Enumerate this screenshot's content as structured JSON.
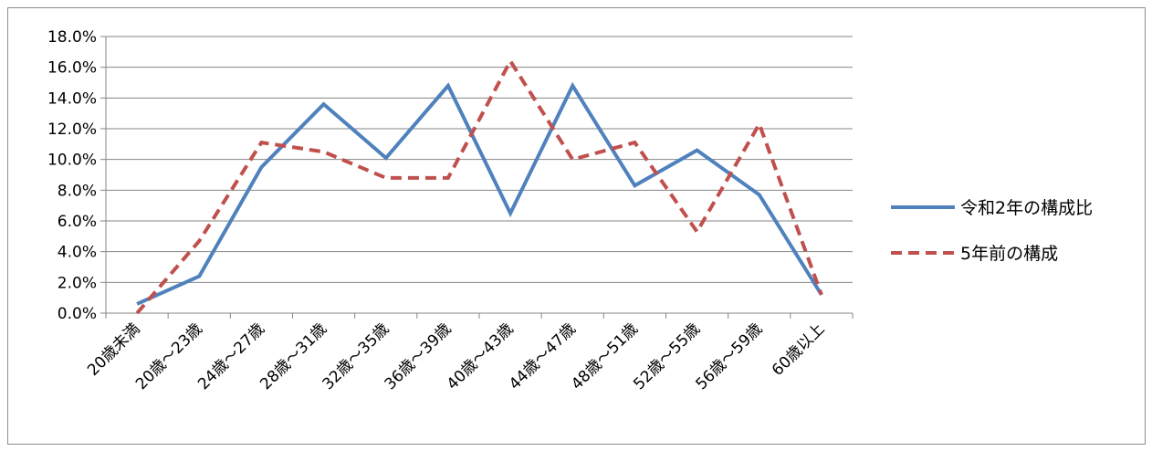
{
  "chart_data": {
    "type": "line",
    "title": "",
    "xlabel": "",
    "ylabel": "",
    "categories": [
      "20歳未満",
      "20歳～23歳",
      "24歳～27歳",
      "28歳～31歳",
      "32歳～35歳",
      "36歳～39歳",
      "40歳～43歳",
      "44歳～47歳",
      "48歳～51歳",
      "52歳～55歳",
      "56歳～59歳",
      "60歳以上"
    ],
    "y_ticks": [
      "0.0%",
      "2.0%",
      "4.0%",
      "6.0%",
      "8.0%",
      "10.0%",
      "12.0%",
      "14.0%",
      "16.0%",
      "18.0%"
    ],
    "ylim": [
      0,
      18
    ],
    "y_unit": "%",
    "grid": true,
    "legend_position": "right",
    "series": [
      {
        "name": "令和2年の構成比",
        "color": "#4f81bd",
        "dash": "solid",
        "values": [
          0.6,
          2.4,
          9.5,
          13.6,
          10.1,
          14.8,
          6.5,
          14.8,
          8.3,
          10.6,
          7.7,
          1.2
        ]
      },
      {
        "name": "5年前の構成",
        "color": "#c0504d",
        "dash": "dashed",
        "values": [
          0.0,
          4.7,
          11.1,
          10.5,
          8.8,
          8.8,
          16.4,
          10.0,
          11.1,
          5.3,
          12.3,
          1.2
        ]
      }
    ]
  }
}
